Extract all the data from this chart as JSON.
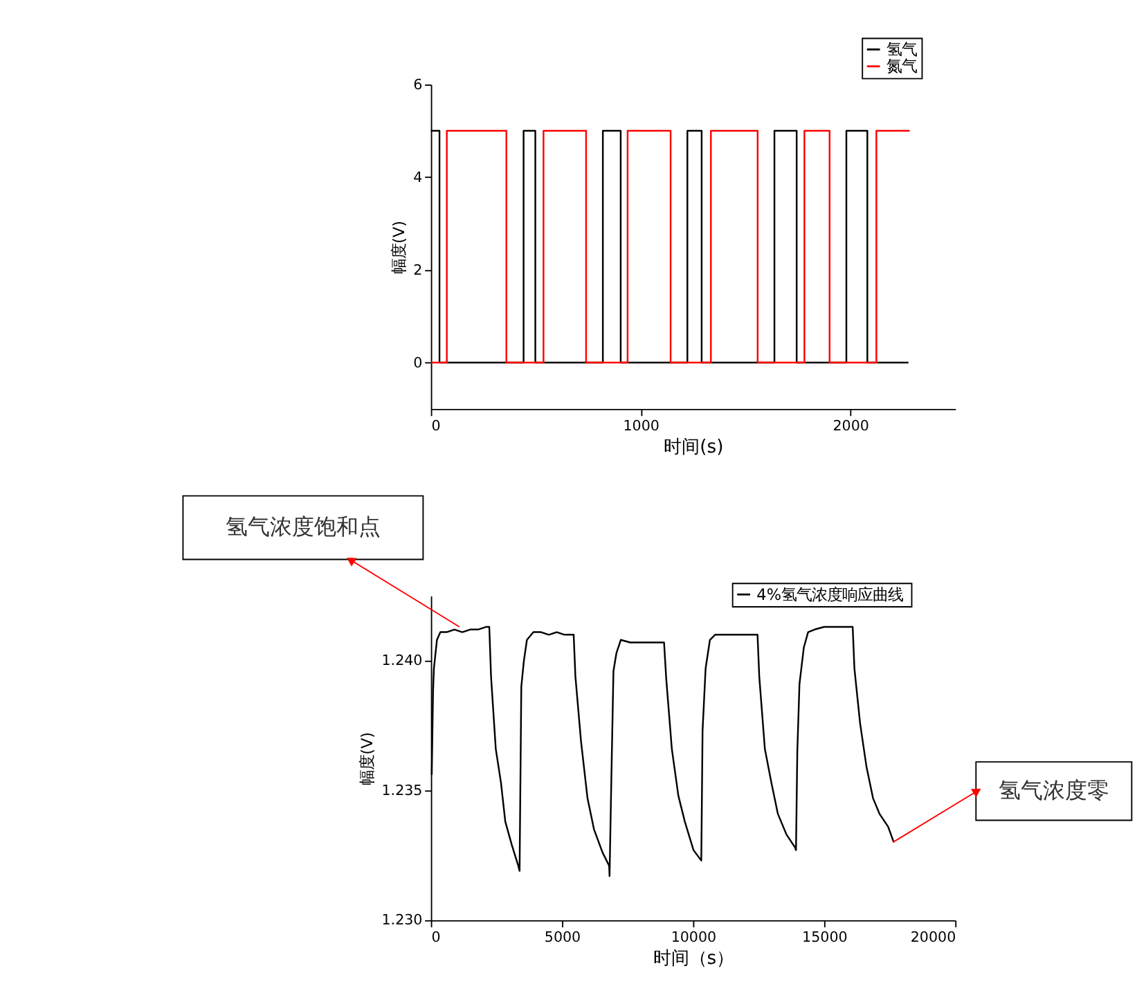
{
  "chart_data": [
    {
      "type": "line",
      "xlabel": "时间(s)",
      "ylabel": "幅度(V)",
      "xlim": [
        0,
        2500
      ],
      "xticks": [
        0,
        1000,
        2000
      ],
      "ylim": [
        -1,
        6
      ],
      "yticks": [
        0,
        2,
        4,
        6
      ],
      "grid": false,
      "legend": "top right",
      "marker": "none",
      "line_style": "solid",
      "series": [
        {
          "name": "氢气",
          "color": "#000000",
          "x": [
            0,
            41,
            41,
            442,
            442,
            498,
            498,
            820,
            820,
            905,
            905,
            1223,
            1223,
            1291,
            1291,
            1638,
            1638,
            1744,
            1744,
            1981,
            1981,
            2081,
            2081,
            2277
          ],
          "values": [
            5,
            5,
            0,
            0,
            5,
            5,
            0,
            0,
            5,
            5,
            0,
            0,
            5,
            5,
            0,
            0,
            5,
            5,
            0,
            0,
            5,
            5,
            0,
            0
          ]
        },
        {
          "name": "氮气",
          "color": "#ff0000",
          "x": [
            0,
            76,
            76,
            360,
            360,
            537,
            537,
            740,
            740,
            938,
            938,
            1143,
            1143,
            1335,
            1335,
            1558,
            1558,
            1781,
            1781,
            1901,
            1901,
            2124,
            2124,
            2283
          ],
          "values": [
            0,
            0,
            5,
            5,
            0,
            0,
            5,
            5,
            0,
            0,
            5,
            5,
            0,
            0,
            5,
            5,
            0,
            0,
            5,
            5,
            0,
            0,
            5,
            5
          ]
        }
      ]
    },
    {
      "type": "line",
      "xlabel": "时间（s）",
      "ylabel": "幅度(V)",
      "xlim": [
        0,
        20000
      ],
      "xticks": [
        0,
        5000,
        10000,
        15000,
        20000
      ],
      "ylim": [
        1.23,
        1.2425
      ],
      "yticks": [
        {
          "value": 1.23,
          "label": "1.230"
        },
        {
          "value": 1.235,
          "label": "1.235"
        },
        {
          "value": 1.24,
          "label": "1.240"
        }
      ],
      "grid": false,
      "legend": "top right",
      "marker": "none",
      "line_style": "solid",
      "series": [
        {
          "name": "4%氢气浓度响应曲线",
          "color": "#000000",
          "x": [
            33,
            82,
            115,
            231,
            363,
            600,
            900,
            1200,
            1500,
            1800,
            2100,
            2228,
            2294,
            2475,
            2673,
            2838,
            3086,
            3333,
            3383,
            3449,
            3548,
            3663,
            3911,
            4200,
            4500,
            4800,
            5100,
            5446,
            5512,
            5726,
            5974,
            6221,
            6551,
            6799,
            6815,
            6881,
            6964,
            7079,
            7244,
            7600,
            8000,
            8400,
            8894,
            8977,
            9191,
            9439,
            9686,
            10017,
            10314,
            10363,
            10479,
            10644,
            10842,
            11200,
            11600,
            12000,
            12459,
            12525,
            12739,
            12987,
            13234,
            13564,
            13894,
            13927,
            13977,
            14059,
            14224,
            14389,
            14637,
            15000,
            15400,
            15800,
            16089,
            16155,
            16370,
            16617,
            16865,
            17112,
            17442,
            17657
          ],
          "values": [
            1.2356,
            1.2388,
            1.2397,
            1.2408,
            1.2411,
            1.2411,
            1.2412,
            1.2411,
            1.2412,
            1.2412,
            1.2413,
            1.2413,
            1.2394,
            1.2366,
            1.2353,
            1.2338,
            1.2329,
            1.2321,
            1.2319,
            1.239,
            1.24,
            1.2408,
            1.2411,
            1.2411,
            1.241,
            1.2411,
            1.241,
            1.241,
            1.2394,
            1.2369,
            1.2347,
            1.2335,
            1.2326,
            1.2321,
            1.2317,
            1.2353,
            1.2396,
            1.2403,
            1.2408,
            1.2407,
            1.2407,
            1.2407,
            1.2407,
            1.2393,
            1.2366,
            1.2348,
            1.2338,
            1.2327,
            1.2323,
            1.2373,
            1.2397,
            1.2408,
            1.241,
            1.241,
            1.241,
            1.241,
            1.241,
            1.2394,
            1.2366,
            1.2353,
            1.2341,
            1.2333,
            1.2328,
            1.2327,
            1.2365,
            1.2391,
            1.2405,
            1.2411,
            1.2412,
            1.2413,
            1.2413,
            1.2413,
            1.2413,
            1.2397,
            1.2376,
            1.2359,
            1.2347,
            1.2341,
            1.2336,
            1.233
          ]
        }
      ],
      "annotations": [
        {
          "text": "氢气浓度饱和点",
          "x": 1090,
          "y": 1.2413
        },
        {
          "text": "氢气浓度零",
          "x": 17620,
          "y": 1.233
        }
      ]
    }
  ]
}
